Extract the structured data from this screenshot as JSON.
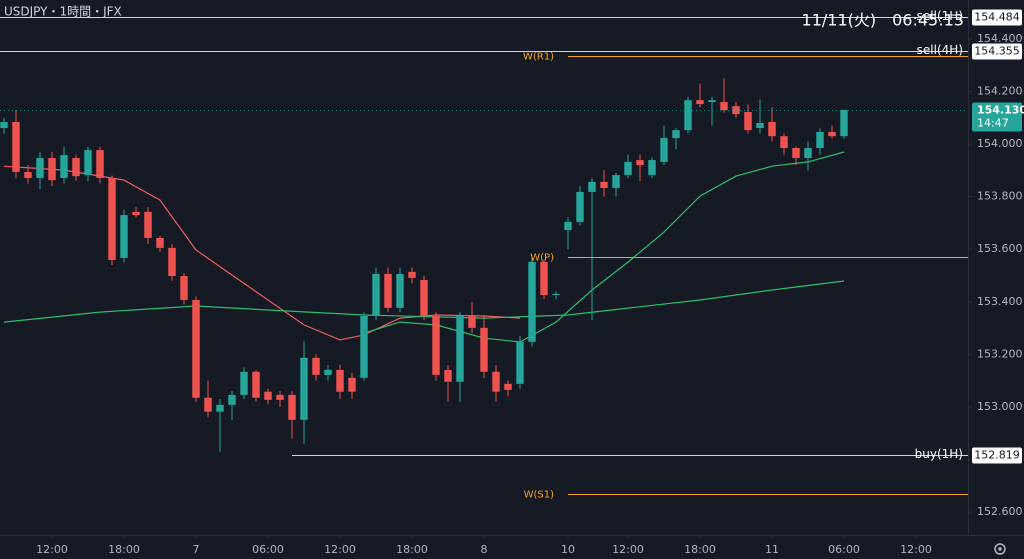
{
  "chart_data": {
    "type": "candlestick",
    "title": "USDJPY・1時間・JFX",
    "clock": "11/11(火)　06:45:13",
    "colors": {
      "up": "#26a69a",
      "down": "#ef5350"
    },
    "xlim": [
      -0.333,
      80.333
    ],
    "xticks": [
      {
        "value": 4,
        "label": "12:00"
      },
      {
        "value": 10,
        "label": "18:00"
      },
      {
        "value": 16,
        "label": "7"
      },
      {
        "value": 22,
        "label": "06:00"
      },
      {
        "value": 28,
        "label": "12:00"
      },
      {
        "value": 34,
        "label": "18:00"
      },
      {
        "value": 40,
        "label": "8"
      },
      {
        "value": 47,
        "label": "10"
      },
      {
        "value": 52,
        "label": "12:00"
      },
      {
        "value": 58,
        "label": "18:00"
      },
      {
        "value": 64,
        "label": "11"
      },
      {
        "value": 70,
        "label": "06:00"
      },
      {
        "value": 76,
        "label": "12:00"
      }
    ],
    "ylim": [
      152.513,
      154.548
    ],
    "yticks": [
      {
        "value": 154.4,
        "label": "154.400"
      },
      {
        "value": 154.2,
        "label": "154.200"
      },
      {
        "value": 154,
        "label": "154.000"
      },
      {
        "value": 153.8,
        "label": "153.800"
      },
      {
        "value": 153.6,
        "label": "153.600"
      },
      {
        "value": 153.4,
        "label": "153.400"
      },
      {
        "value": 153.2,
        "label": "153.200"
      },
      {
        "value": 153,
        "label": "153.000"
      },
      {
        "value": 152.8,
        "label": "152.800"
      },
      {
        "value": 152.6,
        "label": "152.600"
      }
    ],
    "open": [
      154.061,
      154.084,
      153.894,
      153.871,
      153.947,
      153.871,
      153.947,
      153.882,
      153.977,
      153.871,
      153.567,
      153.742,
      153.742,
      153.643,
      153.605,
      153.498,
      153.407,
      153.035,
      152.982,
      153.008,
      153.046,
      153.134,
      153.058,
      153.046,
      153.046,
      152.951,
      153.187,
      153.122,
      153.141,
      153.111,
      153.111,
      153.346,
      153.506,
      153.377,
      153.514,
      153.483,
      153.346,
      153.141,
      153.096,
      153.346,
      153.301,
      153.134,
      153.088,
      153.088,
      153.248,
      153.552,
      153.426,
      153.673,
      153.704,
      153.818,
      153.856,
      153.833,
      153.882,
      153.939,
      153.882,
      153.932,
      154.023,
      154.053,
      154.167,
      154.16,
      154.16,
      154.144,
      154.122,
      154.061,
      154.084,
      154.03,
      153.985,
      153.947,
      153.985,
      154.046,
      154.03
    ],
    "high": [
      154.1,
      154.13,
      153.92,
      153.97,
      153.97,
      153.99,
      153.96,
      153.99,
      153.99,
      153.88,
      153.75,
      153.76,
      153.76,
      153.65,
      153.62,
      153.51,
      153.42,
      153.1,
      153.03,
      153.06,
      153.15,
      153.14,
      153.07,
      153.06,
      153.06,
      153.25,
      153.2,
      153.16,
      153.16,
      153.13,
      153.36,
      153.53,
      153.53,
      153.53,
      153.53,
      153.5,
      153.36,
      153.16,
      153.36,
      153.4,
      153.35,
      153.16,
      153.1,
      153.27,
      153.57,
      153.56,
      153.44,
      153.72,
      153.84,
      153.87,
      153.9,
      153.89,
      153.96,
      153.96,
      153.95,
      154.07,
      154.06,
      154.18,
      154.23,
      154.18,
      154.25,
      154.16,
      154.15,
      154.17,
      154.14,
      154.04,
      153.99,
      154.01,
      154.06,
      154.07,
      154.13
    ],
    "low": [
      154.04,
      153.87,
      153.85,
      153.83,
      153.84,
      153.85,
      153.86,
      153.86,
      153.85,
      153.54,
      153.55,
      153.72,
      153.62,
      153.59,
      153.48,
      153.39,
      153.02,
      152.96,
      152.83,
      152.95,
      153.03,
      153.02,
      153.01,
      153.0,
      152.88,
      152.86,
      153.1,
      153.1,
      153.03,
      153.03,
      153.1,
      153.33,
      153.36,
      153.36,
      153.47,
      153.33,
      153.1,
      153.02,
      153.02,
      153.28,
      153.11,
      153.02,
      153.04,
      153.07,
      153.23,
      153.41,
      153.41,
      153.6,
      153.69,
      153.33,
      153.8,
      153.8,
      153.87,
      153.86,
      153.87,
      153.92,
      153.98,
      154.04,
      154.14,
      154.07,
      154.12,
      154.1,
      154.04,
      154.04,
      154.01,
      153.96,
      153.92,
      153.9,
      153.96,
      154.02,
      154.02
    ],
    "close": [
      154.084,
      153.894,
      153.871,
      153.947,
      153.863,
      153.958,
      153.878,
      153.977,
      153.871,
      153.559,
      153.73,
      153.73,
      153.643,
      153.605,
      153.498,
      153.407,
      153.035,
      152.982,
      153.008,
      153.046,
      153.134,
      153.035,
      153.027,
      153.027,
      152.951,
      153.187,
      153.122,
      153.141,
      153.058,
      153.058,
      153.346,
      153.506,
      153.377,
      153.506,
      153.491,
      153.346,
      153.122,
      153.096,
      153.346,
      153.301,
      153.134,
      153.058,
      153.065,
      153.248,
      153.552,
      153.426,
      153.43,
      153.704,
      153.818,
      153.856,
      153.833,
      153.882,
      153.932,
      153.92,
      153.939,
      154.023,
      154.053,
      154.167,
      154.152,
      154.167,
      154.129,
      154.114,
      154.053,
      154.08,
      154.03,
      153.985,
      153.947,
      153.985,
      154.046,
      154.03,
      154.13
    ],
    "series": [
      {
        "color": "#f15b5b",
        "x": [
          0,
          5,
          10,
          13,
          16,
          19,
          22,
          25,
          28,
          30,
          33,
          36,
          40,
          43
        ],
        "values": [
          153.916,
          153.901,
          153.863,
          153.787,
          153.597,
          153.502,
          153.407,
          153.312,
          153.255,
          153.274,
          153.338,
          153.35,
          153.346,
          153.338
        ]
      },
      {
        "color": "#2ebd6b",
        "x": [
          30,
          33,
          36,
          40,
          43,
          46,
          49,
          52,
          55,
          58,
          61,
          64,
          67,
          70
        ],
        "values": [
          153.281,
          153.323,
          153.312,
          153.262,
          153.247,
          153.323,
          153.445,
          153.551,
          153.665,
          153.802,
          153.878,
          153.916,
          153.932,
          153.97
        ]
      },
      {
        "color": "#2ebd6b",
        "x": [
          0,
          8,
          16,
          22,
          30,
          40,
          47,
          52,
          58,
          64,
          70
        ],
        "values": [
          153.323,
          153.361,
          153.384,
          153.369,
          153.35,
          153.338,
          153.35,
          153.376,
          153.407,
          153.445,
          153.479
        ]
      }
    ],
    "levels": [
      {
        "label": "sell(1H)",
        "value": 154.484,
        "color": "#d1d4dc",
        "kind": "order"
      },
      {
        "label": "sell(4H)",
        "value": 154.355,
        "color": "#d1d4dc",
        "kind": "order"
      },
      {
        "label": "W(R1)",
        "value": 154.335,
        "color": "#f7a21b",
        "kind": "pivot",
        "start": 47
      },
      {
        "label": "W(P)",
        "value": 153.57,
        "color": "#f7a21b",
        "kind": "pivot",
        "start": 47
      },
      {
        "label": "buy(1H)",
        "value": 152.819,
        "color": "#d1d4dc",
        "kind": "order",
        "start": 24
      },
      {
        "label": "W(S1)",
        "value": 152.669,
        "color": "#f7a21b",
        "kind": "pivot",
        "start": 47
      }
    ],
    "last": {
      "value": 154.13,
      "label": "154.130",
      "countdown": "14:47",
      "color": "#26a69a"
    }
  }
}
